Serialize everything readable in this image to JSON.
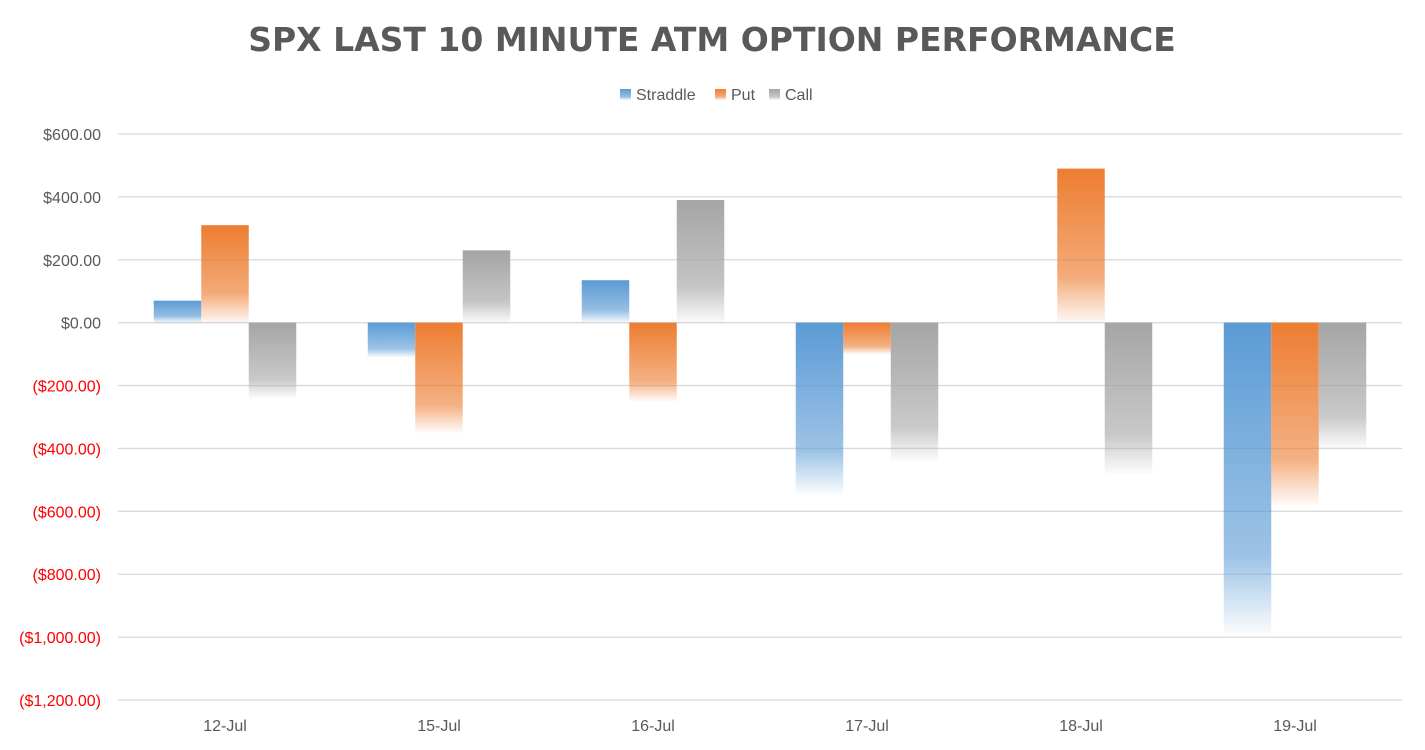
{
  "chart_data": {
    "type": "bar",
    "title": "SPX LAST 10 MINUTE ATM OPTION PERFORMANCE",
    "xlabel": "",
    "ylabel": "",
    "categories": [
      "12-Jul",
      "15-Jul",
      "16-Jul",
      "17-Jul",
      "18-Jul",
      "19-Jul"
    ],
    "series": [
      {
        "name": "Straddle",
        "color": "#5B9BD5",
        "values": [
          70,
          -110,
          135,
          -545,
          0,
          -990
        ]
      },
      {
        "name": "Put",
        "color": "#ED7D31",
        "values": [
          310,
          -350,
          -250,
          -100,
          490,
          -580
        ]
      },
      {
        "name": "Call",
        "color": "#A5A5A5",
        "values": [
          -240,
          230,
          390,
          -440,
          -480,
          -400
        ]
      }
    ],
    "ylim": [
      -1200,
      600
    ],
    "yticks": [
      600,
      400,
      200,
      0,
      -200,
      -400,
      -600,
      -800,
      -1000,
      -1200
    ],
    "ytick_labels": [
      "$600.00",
      "$400.00",
      "$200.00",
      "$0.00",
      "($200.00)",
      "($400.00)",
      "($600.00)",
      "($800.00)",
      "($1,000.00)",
      "($1,200.00)"
    ],
    "negative_label_color": "#FF0000",
    "positive_label_color": "#595959",
    "legend_position": "top-center",
    "grid": true
  }
}
